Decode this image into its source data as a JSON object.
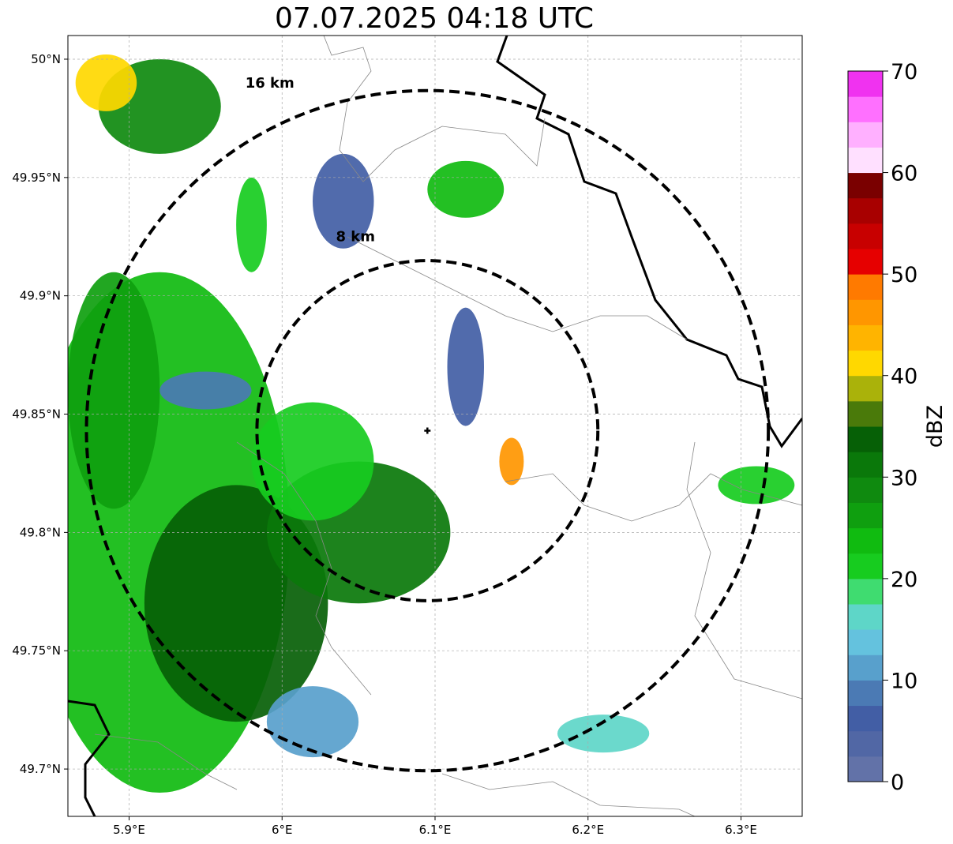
{
  "title": "07.07.2025 04:18 UTC",
  "map": {
    "lon_range": [
      5.86,
      6.34
    ],
    "lat_range": [
      49.68,
      50.01
    ],
    "lon_ticks": [
      {
        "value": 5.9,
        "label": "5.9°E"
      },
      {
        "value": 6.0,
        "label": "6°E"
      },
      {
        "value": 6.1,
        "label": "6.1°E"
      },
      {
        "value": 6.2,
        "label": "6.2°E"
      },
      {
        "value": 6.3,
        "label": "6.3°E"
      }
    ],
    "lat_ticks": [
      {
        "value": 50.0,
        "label": "50°N"
      },
      {
        "value": 49.95,
        "label": "49.95°N"
      },
      {
        "value": 49.9,
        "label": "49.9°N"
      },
      {
        "value": 49.85,
        "label": "49.85°N"
      },
      {
        "value": 49.8,
        "label": "49.8°N"
      },
      {
        "value": 49.75,
        "label": "49.75°N"
      },
      {
        "value": 49.7,
        "label": "49.7°N"
      }
    ],
    "gridlines": true,
    "radar_site": {
      "lon": 6.095,
      "lat": 49.843
    },
    "range_rings": [
      {
        "radius_km": 8,
        "label": "8 km",
        "label_lon": 6.048,
        "label_lat": 49.923
      },
      {
        "radius_km": 16,
        "label": "16 km",
        "label_lon": 5.992,
        "label_lat": 49.988
      }
    ],
    "echoes": [
      {
        "lon": 5.92,
        "lat": 49.8,
        "rx": 0.085,
        "ry": 0.11,
        "dbz": 24
      },
      {
        "lon": 5.97,
        "lat": 49.77,
        "rx": 0.06,
        "ry": 0.05,
        "dbz": 33
      },
      {
        "lon": 6.05,
        "lat": 49.8,
        "rx": 0.06,
        "ry": 0.03,
        "dbz": 30
      },
      {
        "lon": 6.02,
        "lat": 49.83,
        "rx": 0.04,
        "ry": 0.025,
        "dbz": 22
      },
      {
        "lon": 5.89,
        "lat": 49.86,
        "rx": 0.03,
        "ry": 0.05,
        "dbz": 25
      },
      {
        "lon": 5.92,
        "lat": 49.98,
        "rx": 0.04,
        "ry": 0.02,
        "dbz": 28
      },
      {
        "lon": 5.885,
        "lat": 49.99,
        "rx": 0.02,
        "ry": 0.012,
        "dbz": 41
      },
      {
        "lon": 6.04,
        "lat": 49.94,
        "rx": 0.02,
        "ry": 0.02,
        "dbz": 6
      },
      {
        "lon": 6.12,
        "lat": 49.945,
        "rx": 0.025,
        "ry": 0.012,
        "dbz": 24
      },
      {
        "lon": 6.12,
        "lat": 49.87,
        "rx": 0.012,
        "ry": 0.025,
        "dbz": 5
      },
      {
        "lon": 6.15,
        "lat": 49.83,
        "rx": 0.008,
        "ry": 0.01,
        "dbz": 46
      },
      {
        "lon": 6.21,
        "lat": 49.715,
        "rx": 0.03,
        "ry": 0.008,
        "dbz": 16
      },
      {
        "lon": 6.31,
        "lat": 49.82,
        "rx": 0.025,
        "ry": 0.008,
        "dbz": 22
      },
      {
        "lon": 5.98,
        "lat": 49.93,
        "rx": 0.01,
        "ry": 0.02,
        "dbz": 22
      },
      {
        "lon": 5.95,
        "lat": 49.86,
        "rx": 0.03,
        "ry": 0.008,
        "dbz": 8
      },
      {
        "lon": 6.02,
        "lat": 49.72,
        "rx": 0.03,
        "ry": 0.015,
        "dbz": 12
      }
    ]
  },
  "colorbar": {
    "title": "dBZ",
    "min": 0,
    "max": 70,
    "step": 2.5,
    "colors": [
      "#6272a8",
      "#5167a5",
      "#425ea5",
      "#4b7ab4",
      "#58a0cc",
      "#64c2de",
      "#5ed6c8",
      "#3fdc70",
      "#17cc1f",
      "#10bb10",
      "#0f9f0f",
      "#0f8a0f",
      "#0a780a",
      "#066006",
      "#4a7a0a",
      "#aab20a",
      "#ffd800",
      "#ffb400",
      "#ff9600",
      "#ff7a00",
      "#e60000",
      "#c80000",
      "#a80000",
      "#7a0000",
      "#ffe0ff",
      "#ffb0ff",
      "#ff70ff",
      "#f032f0"
    ],
    "ticks": [
      {
        "value": 0,
        "label": "0"
      },
      {
        "value": 10,
        "label": "10"
      },
      {
        "value": 20,
        "label": "20"
      },
      {
        "value": 30,
        "label": "30"
      },
      {
        "value": 40,
        "label": "40"
      },
      {
        "value": 50,
        "label": "50"
      },
      {
        "value": 60,
        "label": "60"
      },
      {
        "value": 70,
        "label": "70"
      }
    ]
  }
}
